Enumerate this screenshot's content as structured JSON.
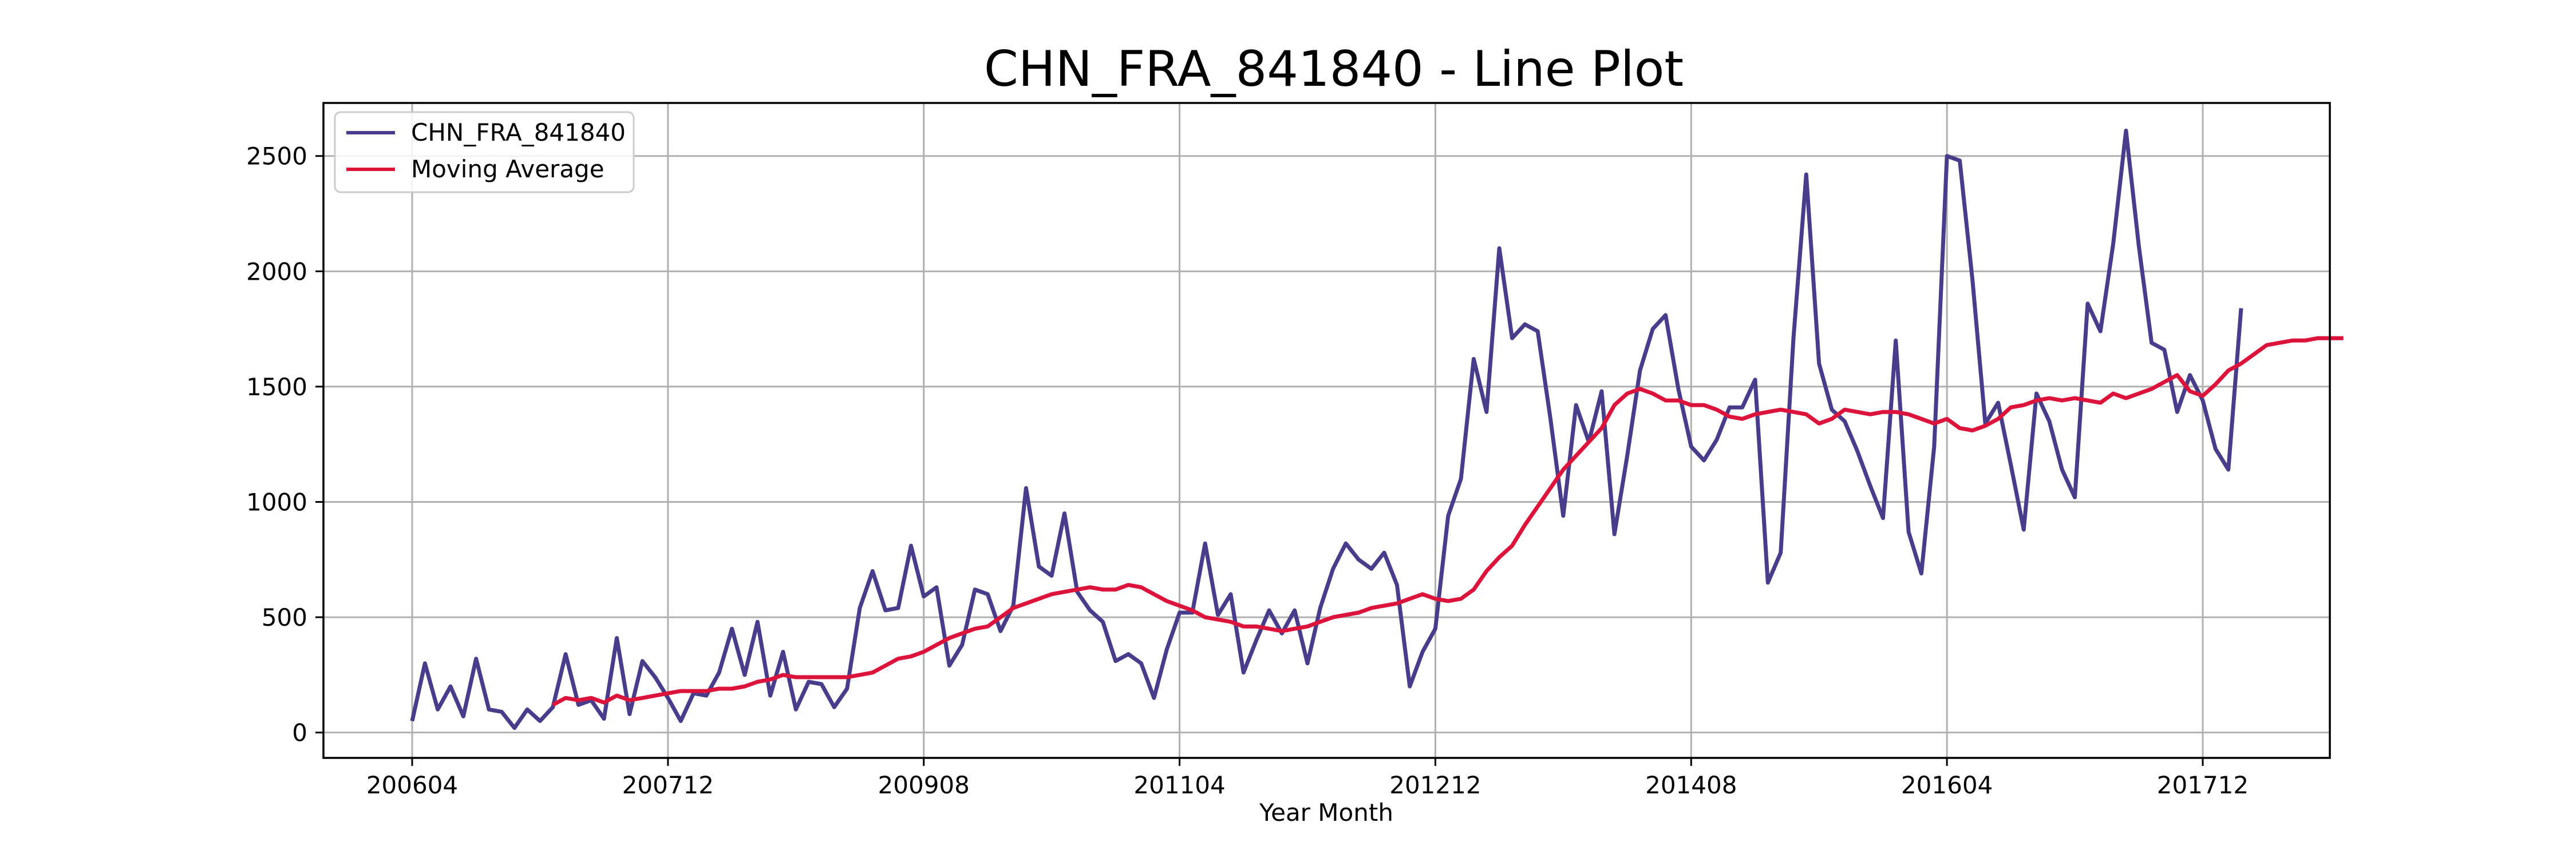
{
  "chart_data": {
    "type": "line",
    "title": "CHN_FRA_841840 - Line Plot",
    "xlabel": "Year Month",
    "ylabel": "",
    "x_start": "200604",
    "x_ticks": [
      "200604",
      "200712",
      "200908",
      "201104",
      "201212",
      "201408",
      "201604",
      "201712"
    ],
    "y_ticks": [
      0,
      500,
      1000,
      1500,
      2000,
      2500
    ],
    "ylim": [
      -110,
      2730
    ],
    "grid": true,
    "legend_position": "top-left",
    "series": [
      {
        "name": "CHN_FRA_841840",
        "color": "#483d8b",
        "values": [
          50,
          300,
          100,
          200,
          70,
          320,
          100,
          90,
          20,
          100,
          50,
          110,
          340,
          120,
          140,
          60,
          410,
          80,
          310,
          240,
          150,
          50,
          170,
          160,
          260,
          450,
          250,
          480,
          160,
          350,
          100,
          220,
          210,
          110,
          190,
          540,
          700,
          530,
          540,
          810,
          590,
          630,
          290,
          380,
          620,
          600,
          440,
          550,
          1060,
          720,
          680,
          950,
          610,
          530,
          480,
          310,
          340,
          300,
          150,
          360,
          520,
          520,
          820,
          510,
          600,
          260,
          400,
          530,
          430,
          530,
          300,
          540,
          710,
          820,
          750,
          710,
          780,
          640,
          200,
          350,
          450,
          940,
          1100,
          1620,
          1390,
          2100,
          1710,
          1770,
          1740,
          1360,
          940,
          1420,
          1260,
          1480,
          860,
          1200,
          1570,
          1750,
          1810,
          1490,
          1240,
          1180,
          1270,
          1410,
          1410,
          1530,
          650,
          780,
          1710,
          2420,
          1600,
          1400,
          1350,
          1220,
          1070,
          930,
          1700,
          870,
          690,
          1240,
          2500,
          2480,
          1960,
          1340,
          1430,
          1160,
          880,
          1470,
          1350,
          1140,
          1020,
          1860,
          1740,
          2120,
          2610,
          2110,
          1690,
          1660,
          1390,
          1550,
          1440,
          1230,
          1140,
          1840
        ]
      },
      {
        "name": "Moving Average",
        "color": "#dc143c",
        "values": [
          null,
          null,
          null,
          null,
          null,
          null,
          null,
          null,
          null,
          null,
          null,
          120,
          150,
          140,
          150,
          130,
          160,
          140,
          150,
          160,
          170,
          180,
          180,
          180,
          190,
          190,
          200,
          220,
          230,
          250,
          240,
          240,
          240,
          240,
          240,
          250,
          260,
          290,
          320,
          330,
          350,
          380,
          410,
          430,
          450,
          460,
          500,
          540,
          560,
          580,
          600,
          610,
          620,
          630,
          620,
          620,
          640,
          630,
          600,
          570,
          550,
          530,
          500,
          490,
          480,
          460,
          460,
          450,
          440,
          450,
          460,
          480,
          500,
          510,
          520,
          540,
          550,
          560,
          580,
          600,
          580,
          570,
          580,
          620,
          700,
          760,
          810,
          900,
          980,
          1060,
          1140,
          1200,
          1260,
          1320,
          1420,
          1470,
          1490,
          1470,
          1440,
          1440,
          1420,
          1420,
          1400,
          1370,
          1360,
          1380,
          1390,
          1400,
          1390,
          1380,
          1340,
          1360,
          1400,
          1390,
          1380,
          1390,
          1390,
          1380,
          1360,
          1340,
          1360,
          1320,
          1310,
          1330,
          1360,
          1410,
          1420,
          1440,
          1450,
          1440,
          1450,
          1440,
          1430,
          1470,
          1450,
          1470,
          1490,
          1520,
          1550,
          1480,
          1460,
          1510,
          1570,
          1600,
          1640,
          1680,
          1690,
          1700,
          1700,
          1710,
          1710,
          1710
        ]
      }
    ]
  }
}
